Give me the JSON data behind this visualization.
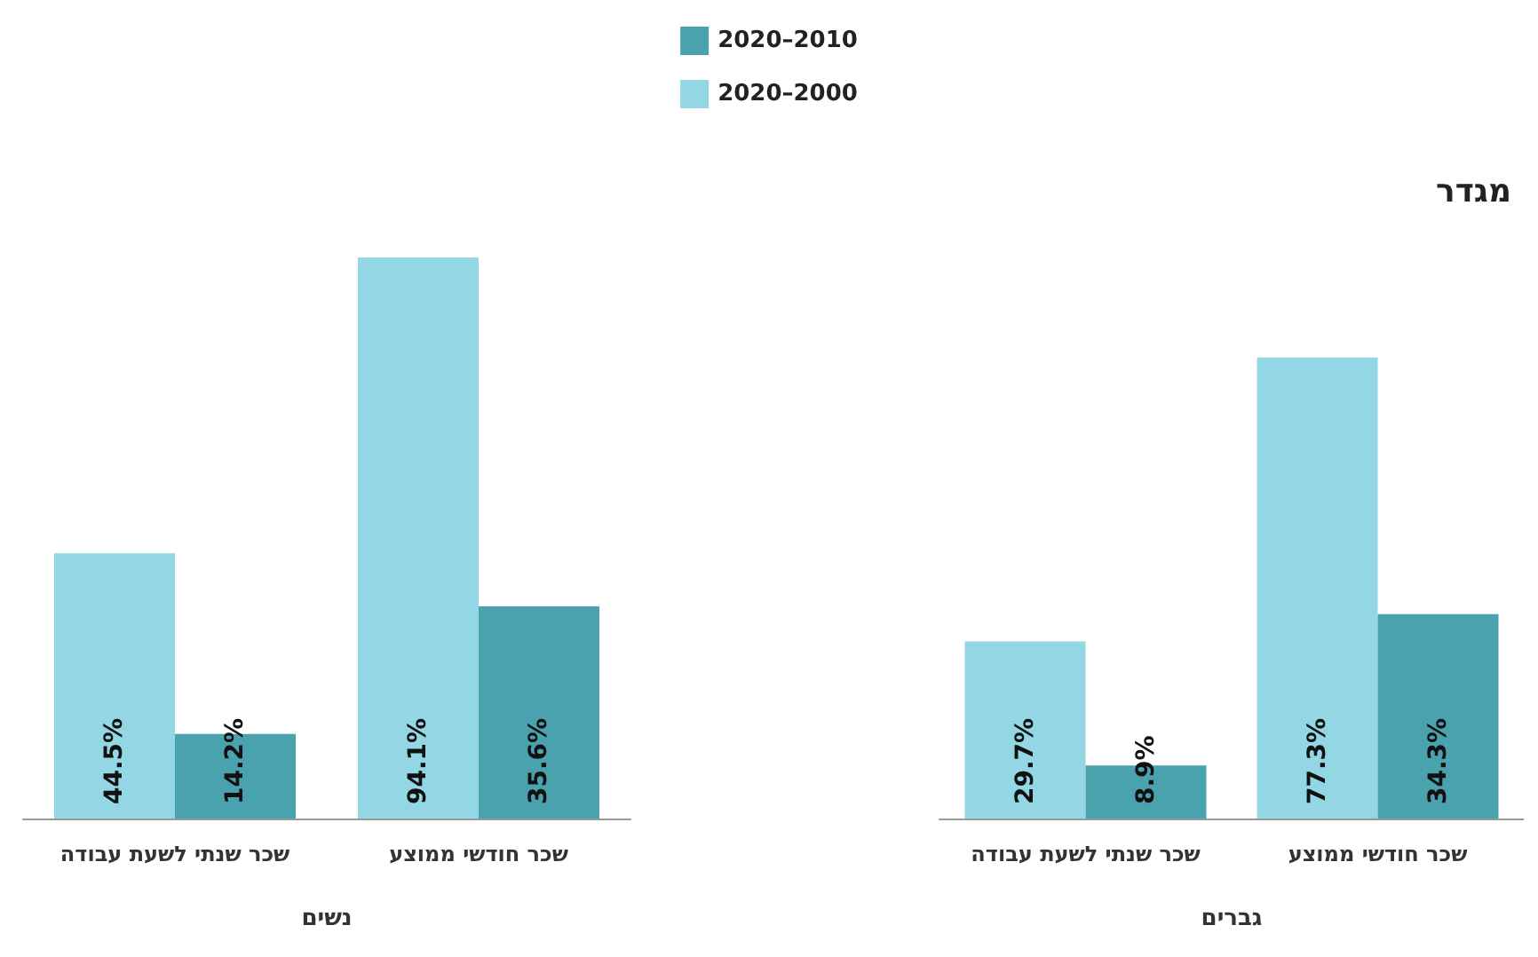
{
  "chart_data": {
    "type": "bar",
    "title": "מגדר",
    "categories": [
      "שכר שנתי לשעת עבודה",
      "שכר חודשי ממוצע",
      "שכר שנתי לשעת עבודה",
      "שכר חודשי ממוצע"
    ],
    "series": [
      {
        "name": "2020–2000",
        "color": "#93d6e4",
        "values": [
          44.5,
          94.1,
          29.7,
          77.3
        ],
        "value_labels": [
          "44.5%",
          "94.1%",
          "29.7%",
          "77.3%"
        ]
      },
      {
        "name": "2020–2010",
        "color": "#4aa2ae",
        "values": [
          14.2,
          35.6,
          8.9,
          34.3
        ],
        "value_labels": [
          "14.2%",
          "35.6%",
          "8.9%",
          "34.3%"
        ]
      }
    ],
    "annotations": [
      "נשים",
      "גברים"
    ],
    "legend": "top"
  }
}
